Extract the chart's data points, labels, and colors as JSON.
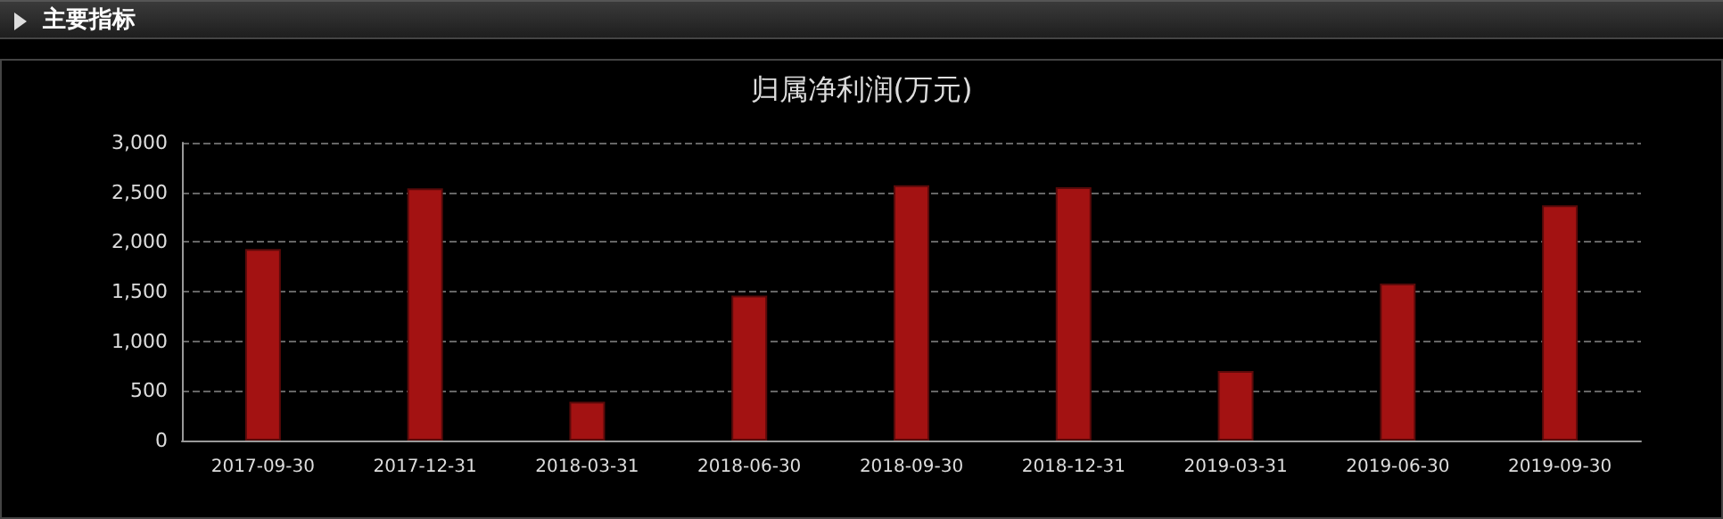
{
  "chart_data": {
    "type": "bar",
    "title": "归属净利润(万元)",
    "annotations": [
      "主要指标"
    ],
    "categories": [
      "2017-09-30",
      "2017-12-31",
      "2018-03-31",
      "2018-06-30",
      "2018-09-30",
      "2018-12-31",
      "2019-03-31",
      "2019-06-30",
      "2019-09-30"
    ],
    "values": [
      1930,
      2540,
      390,
      1460,
      2570,
      2550,
      700,
      1580,
      2370
    ],
    "color": "#a31212",
    "ylim": [
      0,
      3000
    ],
    "yticks": [
      {
        "value": 0,
        "label": "0"
      },
      {
        "value": 500,
        "label": "500"
      },
      {
        "value": 1000,
        "label": "1,000"
      },
      {
        "value": 1500,
        "label": "1,500"
      },
      {
        "value": 2000,
        "label": "2,000"
      },
      {
        "value": 2500,
        "label": "2,500"
      },
      {
        "value": 3000,
        "label": "3,000"
      }
    ],
    "grid": "y"
  }
}
